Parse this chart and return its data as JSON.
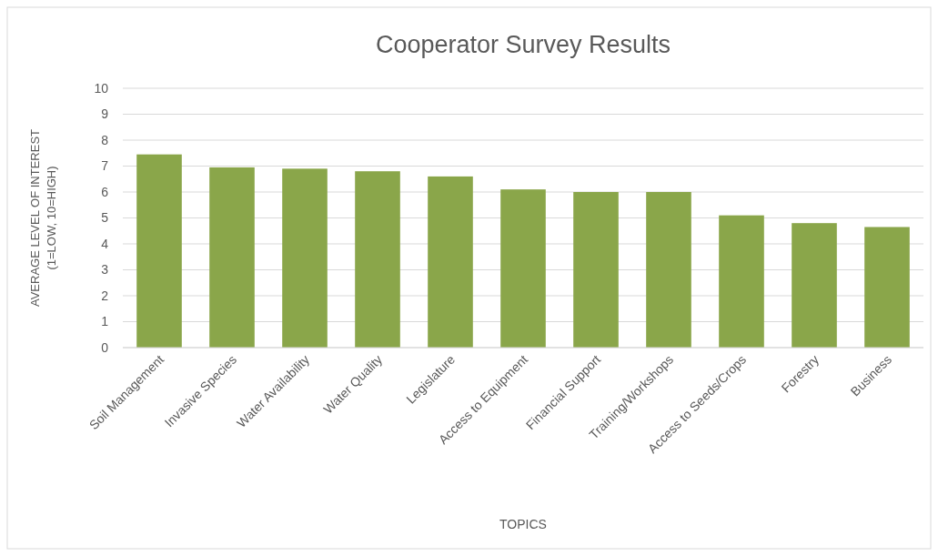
{
  "chart_data": {
    "type": "bar",
    "title": "Cooperator Survey Results",
    "xlabel": "TOPICS",
    "ylabel": "AVERAGE LEVEL OF INTEREST\n(1=LOW, 10=HIGH)",
    "categories": [
      "Soil Management",
      "Invasive Species",
      "Water Availability",
      "Water Quality",
      "Legislature",
      "Access to Equipment",
      "Financial Support",
      "Training/Workshops",
      "Access to Seeds/Crops",
      "Forestry",
      "Business"
    ],
    "values": [
      7.45,
      6.95,
      6.9,
      6.8,
      6.6,
      6.1,
      6.0,
      6.0,
      5.1,
      4.8,
      4.65
    ],
    "color": "#8aa64a",
    "ylim": [
      0,
      10
    ],
    "yticks": [
      0,
      1,
      2,
      3,
      4,
      5,
      6,
      7,
      8,
      9,
      10
    ],
    "grid": "y"
  }
}
